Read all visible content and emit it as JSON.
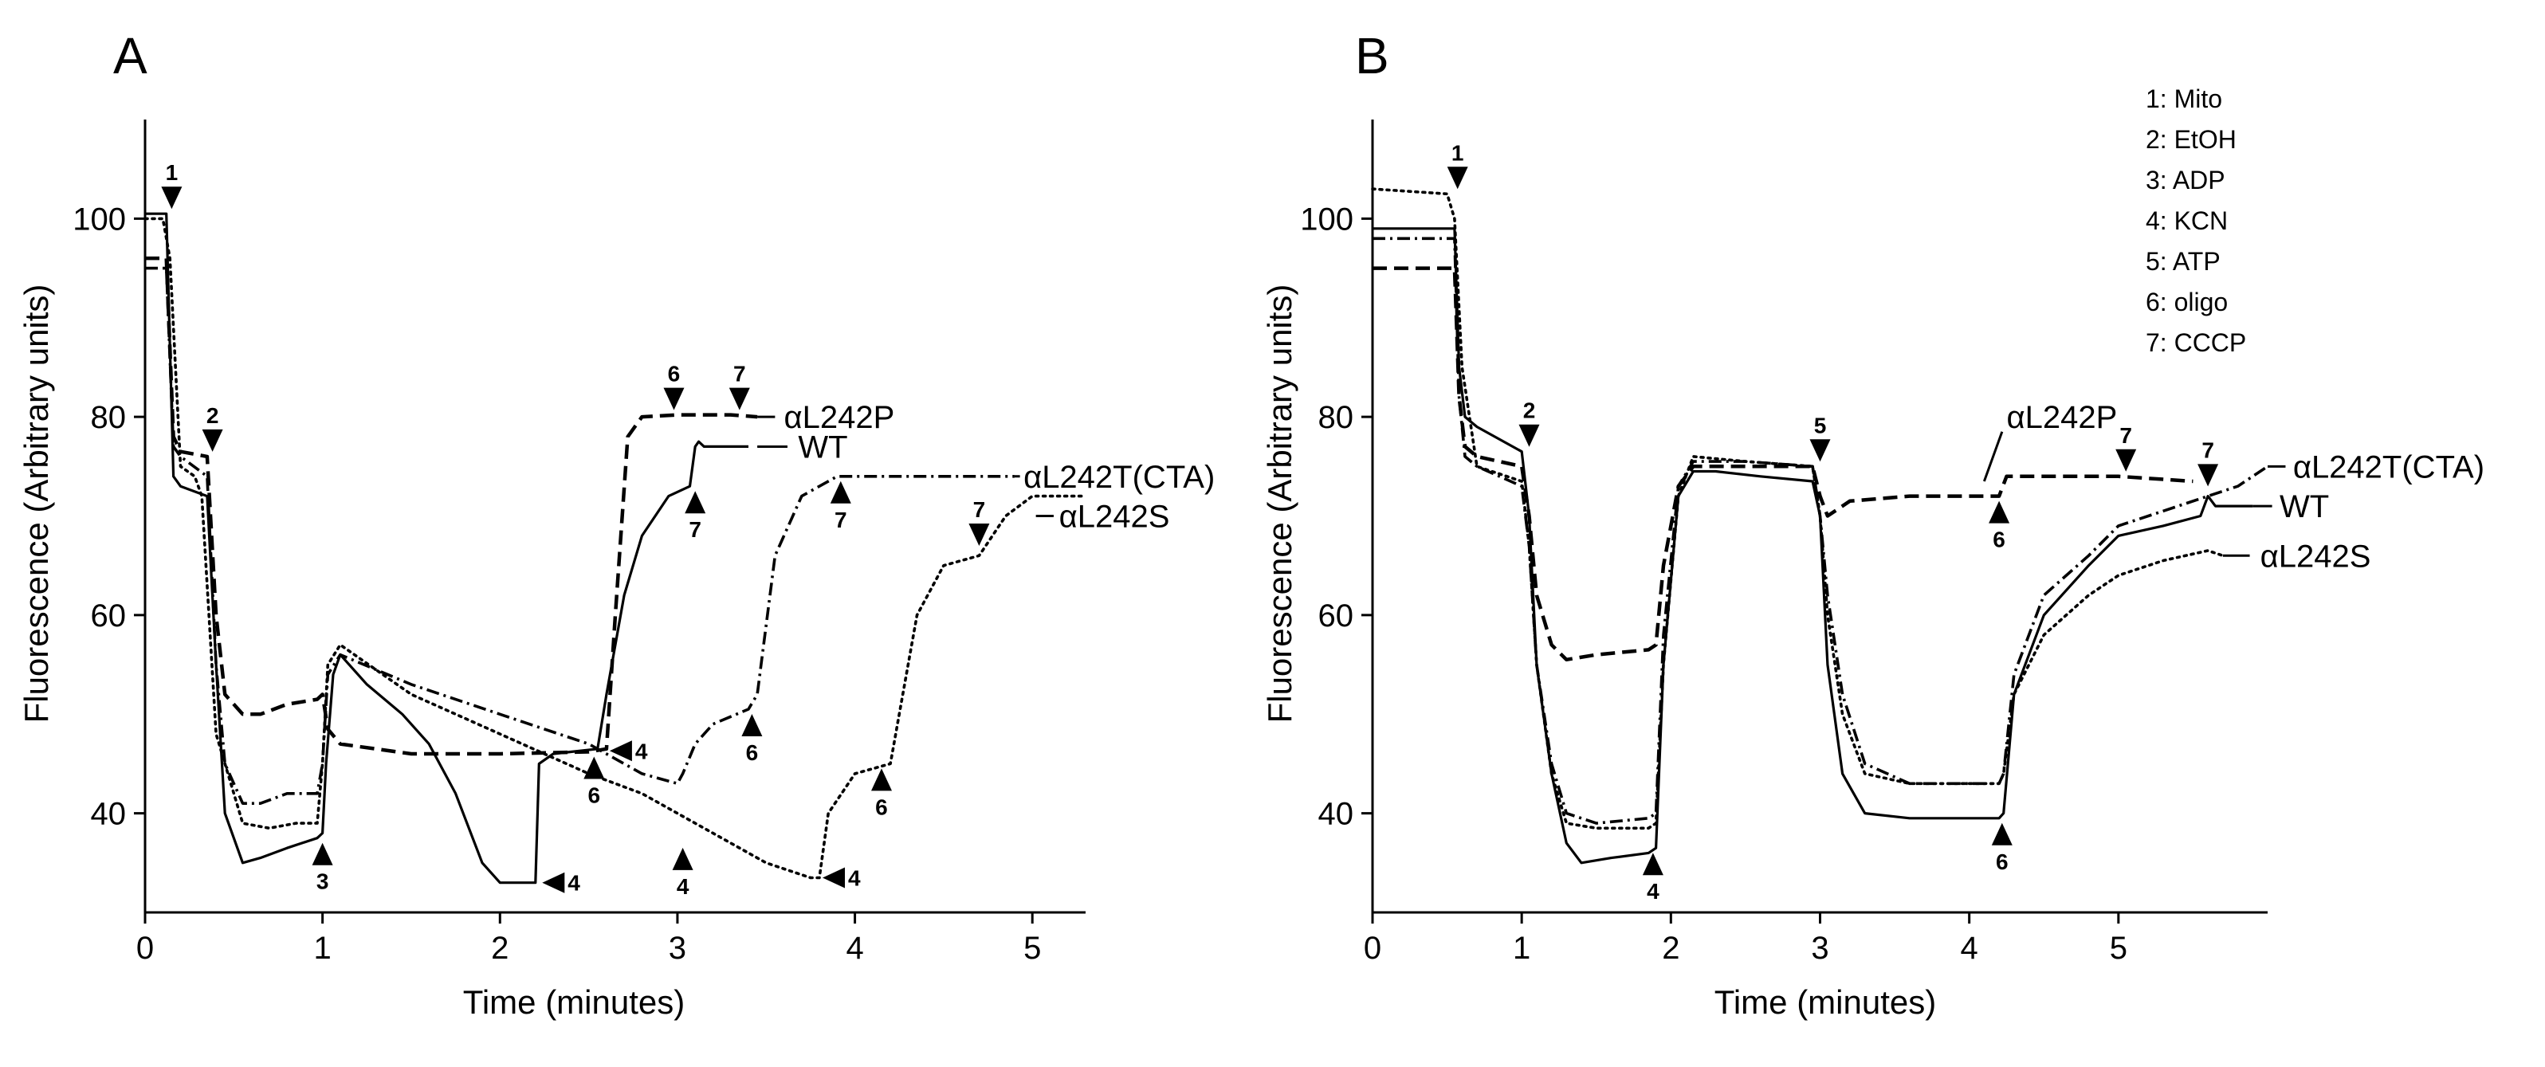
{
  "chart_data": [
    {
      "panel": "A",
      "type": "line",
      "title": "",
      "xlabel": "Time (minutes)",
      "ylabel": "Fluorescence (Arbitrary units)",
      "xlim": [
        0,
        5.3
      ],
      "ylim": [
        30,
        110
      ],
      "xticks": [
        0,
        1,
        2,
        3,
        4,
        5
      ],
      "yticks": [
        40,
        60,
        80,
        100
      ],
      "series": [
        {
          "name": "WT",
          "style": "solid",
          "x": [
            0,
            0.12,
            0.16,
            0.2,
            0.35,
            0.4,
            0.45,
            0.55,
            0.65,
            0.8,
            0.97,
            1.0,
            1.02,
            1.06,
            1.1,
            1.25,
            1.45,
            1.6,
            1.75,
            1.9,
            2.0,
            2.2,
            2.22,
            2.3,
            2.4,
            2.55,
            2.6,
            2.7,
            2.8,
            2.95,
            3.07,
            3.1,
            3.12,
            3.15,
            3.4
          ],
          "y": [
            100.5,
            100.5,
            74,
            73,
            72,
            55,
            40,
            35,
            35.5,
            36.5,
            37.5,
            38,
            45,
            54,
            56,
            53,
            50,
            47,
            42,
            35,
            33,
            33,
            45,
            46,
            46.2,
            46.5,
            52,
            62,
            68,
            72,
            73,
            77,
            77.5,
            77,
            77
          ]
        },
        {
          "name": "αL242P",
          "style": "dashed",
          "x": [
            0,
            0.12,
            0.16,
            0.2,
            0.35,
            0.4,
            0.45,
            0.55,
            0.65,
            0.8,
            0.97,
            1.0,
            1.03,
            1.1,
            1.5,
            2.0,
            2.5,
            2.6,
            2.65,
            2.72,
            2.8,
            3.0,
            3.3,
            3.45
          ],
          "y": [
            96,
            96,
            78,
            76.5,
            76,
            60,
            52,
            50,
            50,
            51,
            51.5,
            52,
            48.5,
            47,
            46,
            46,
            46.2,
            46.5,
            60,
            78,
            80,
            80.2,
            80.2,
            80
          ]
        },
        {
          "name": "αL242T(CTA)",
          "style": "dashdot",
          "x": [
            0,
            0.12,
            0.16,
            0.2,
            0.35,
            0.4,
            0.45,
            0.55,
            0.65,
            0.8,
            0.97,
            1.0,
            1.03,
            1.1,
            1.5,
            2.0,
            2.5,
            2.8,
            3.0,
            3.03,
            3.1,
            3.2,
            3.4,
            3.45,
            3.55,
            3.7,
            3.9,
            4.3,
            4.6,
            4.9
          ],
          "y": [
            95,
            95,
            77,
            76,
            74,
            55,
            45,
            41,
            41,
            42,
            42,
            45,
            54,
            56,
            53,
            50,
            47,
            44,
            43,
            44,
            47,
            49,
            50.5,
            52,
            66,
            72,
            74,
            74,
            74,
            74
          ]
        },
        {
          "name": "αL242S",
          "style": "dotted",
          "x": [
            0,
            0.1,
            0.14,
            0.2,
            0.28,
            0.32,
            0.4,
            0.55,
            0.7,
            0.85,
            0.97,
            1.0,
            1.03,
            1.1,
            1.5,
            2.0,
            2.5,
            2.8,
            3.1,
            3.5,
            3.75,
            3.8,
            3.85,
            4.0,
            4.2,
            4.25,
            4.35,
            4.5,
            4.7,
            4.85,
            5.0,
            5.3
          ],
          "y": [
            100,
            100,
            96,
            75,
            74,
            72,
            48,
            39,
            38.5,
            39,
            39,
            45,
            55,
            57,
            52,
            48,
            44,
            42,
            39,
            35,
            33.5,
            33.5,
            40,
            44,
            45,
            50,
            60,
            65,
            66,
            70,
            72,
            72
          ]
        }
      ],
      "annotations": [
        {
          "label": "1",
          "x": 0.15,
          "y": 100.5,
          "dir": "down"
        },
        {
          "label": "2",
          "x": 0.38,
          "y": 76,
          "dir": "down"
        },
        {
          "label": "3",
          "x": 1.0,
          "y": 37.5,
          "dir": "up"
        },
        {
          "label": "4",
          "x": 2.22,
          "y": 33,
          "dir": "left"
        },
        {
          "label": "4",
          "x": 2.6,
          "y": 46.3,
          "dir": "left"
        },
        {
          "label": "4",
          "x": 3.03,
          "y": 37,
          "dir": "up"
        },
        {
          "label": "4",
          "x": 3.8,
          "y": 33.5,
          "dir": "left"
        },
        {
          "label": "6",
          "x": 2.53,
          "y": 46.2,
          "dir": "up"
        },
        {
          "label": "6",
          "x": 2.98,
          "y": 80.2,
          "dir": "down"
        },
        {
          "label": "6",
          "x": 3.42,
          "y": 50.5,
          "dir": "up"
        },
        {
          "label": "6",
          "x": 4.15,
          "y": 45,
          "dir": "up"
        },
        {
          "label": "7",
          "x": 3.1,
          "y": 73,
          "dir": "up"
        },
        {
          "label": "7",
          "x": 3.35,
          "y": 80.2,
          "dir": "down"
        },
        {
          "label": "7",
          "x": 3.92,
          "y": 74,
          "dir": "up"
        },
        {
          "label": "7",
          "x": 4.7,
          "y": 66.5,
          "dir": "down"
        }
      ],
      "series_labels": [
        {
          "text": "αL242P",
          "x": 3.6,
          "y": 80,
          "leader": [
            3.45,
            3.55,
            80,
            80
          ]
        },
        {
          "text": "WT",
          "x": 3.68,
          "y": 77,
          "leader": [
            3.45,
            3.62,
            77,
            77
          ]
        },
        {
          "text": "αL242T(CTA)",
          "x": 4.95,
          "y": 74,
          "leader": [
            4.9,
            4.93,
            74,
            74
          ]
        },
        {
          "text": "αL242S",
          "x": 5.15,
          "y": 70,
          "leader": [
            5.02,
            5.12,
            70,
            70
          ]
        }
      ]
    },
    {
      "panel": "B",
      "type": "line",
      "title": "",
      "xlabel": "Time (minutes)",
      "ylabel": "Fluorescence (Arbitrary units)",
      "xlim": [
        0,
        6
      ],
      "ylim": [
        30,
        110
      ],
      "xticks": [
        0,
        1,
        2,
        3,
        4,
        5
      ],
      "yticks": [
        40,
        60,
        80,
        100
      ],
      "series": [
        {
          "name": "WT",
          "style": "solid",
          "x": [
            0,
            0.55,
            0.58,
            0.62,
            0.7,
            1.0,
            1.05,
            1.1,
            1.2,
            1.3,
            1.4,
            1.6,
            1.85,
            1.9,
            1.95,
            2.05,
            2.15,
            2.3,
            2.6,
            2.95,
            3.0,
            3.05,
            3.15,
            3.3,
            3.6,
            4.2,
            4.23,
            4.3,
            4.5,
            4.8,
            5.0,
            5.3,
            5.55,
            5.6,
            5.65,
            5.9
          ],
          "y": [
            99,
            99,
            85,
            80,
            79,
            76.5,
            70,
            55,
            44,
            37,
            35,
            35.5,
            36,
            36.5,
            55,
            72,
            74.5,
            74.5,
            74,
            73.5,
            70,
            55,
            44,
            40,
            39.5,
            39.5,
            40,
            52,
            60,
            65,
            68,
            69,
            70,
            72,
            71,
            71
          ]
        },
        {
          "name": "αL242P",
          "style": "dashed",
          "x": [
            0,
            0.55,
            0.58,
            0.62,
            0.7,
            1.0,
            1.05,
            1.1,
            1.2,
            1.3,
            1.5,
            1.85,
            1.9,
            1.95,
            2.05,
            2.15,
            2.5,
            2.95,
            3.0,
            3.05,
            3.2,
            3.6,
            4.2,
            4.25,
            4.5,
            5.0,
            5.5
          ],
          "y": [
            95,
            95,
            82,
            77,
            76,
            75,
            70,
            62,
            57,
            55.5,
            56,
            56.5,
            57,
            65,
            73,
            75,
            75,
            75,
            72,
            70,
            71.5,
            72,
            72,
            74,
            74,
            74,
            73.5
          ]
        },
        {
          "name": "αL242T(CTA)",
          "style": "dashdot",
          "x": [
            0,
            0.55,
            0.58,
            0.62,
            0.7,
            1.0,
            1.05,
            1.1,
            1.2,
            1.3,
            1.5,
            1.85,
            1.9,
            1.95,
            2.05,
            2.15,
            2.5,
            2.95,
            3.0,
            3.05,
            3.15,
            3.3,
            3.6,
            4.2,
            4.23,
            4.3,
            4.5,
            4.8,
            5.0,
            5.3,
            5.6,
            5.8,
            6.0
          ],
          "y": [
            98,
            98,
            82,
            76,
            75,
            73,
            67,
            55,
            45,
            40,
            39,
            39.5,
            40,
            58,
            73,
            75.5,
            75.5,
            75,
            70,
            62,
            52,
            45,
            43,
            43,
            44,
            54,
            62,
            66,
            69,
            70.5,
            72,
            73,
            75
          ]
        },
        {
          "name": "αL242S",
          "style": "dotted",
          "x": [
            0,
            0.5,
            0.55,
            0.6,
            0.7,
            1.0,
            1.05,
            1.1,
            1.2,
            1.3,
            1.5,
            1.85,
            1.9,
            1.95,
            2.05,
            2.15,
            2.5,
            2.95,
            3.0,
            3.05,
            3.15,
            3.3,
            3.6,
            4.2,
            4.23,
            4.3,
            4.5,
            4.8,
            5.0,
            5.3,
            5.6,
            5.7
          ],
          "y": [
            103,
            102.5,
            100,
            85,
            75,
            73.5,
            67,
            55,
            44,
            39,
            38.5,
            38.5,
            39,
            55,
            72,
            76,
            75.5,
            75,
            70,
            60,
            50,
            44,
            43,
            43,
            44,
            52,
            58,
            62,
            64,
            65.5,
            66.5,
            66
          ]
        }
      ],
      "annotations": [
        {
          "label": "1",
          "x": 0.57,
          "y": 102.5,
          "dir": "down"
        },
        {
          "label": "2",
          "x": 1.05,
          "y": 76.5,
          "dir": "down"
        },
        {
          "label": "4",
          "x": 1.88,
          "y": 36.5,
          "dir": "up"
        },
        {
          "label": "5",
          "x": 3.0,
          "y": 75,
          "dir": "down"
        },
        {
          "label": "6",
          "x": 4.22,
          "y": 39.5,
          "dir": "up"
        },
        {
          "label": "6",
          "x": 4.2,
          "y": 72,
          "dir": "up"
        },
        {
          "label": "7",
          "x": 5.05,
          "y": 74,
          "dir": "down"
        },
        {
          "label": "7",
          "x": 5.6,
          "y": 72.5,
          "dir": "down"
        }
      ],
      "series_labels": [
        {
          "text": "αL242P",
          "x": 4.25,
          "y": 80,
          "leader": [
            4.1,
            4.22,
            73.5,
            78.5
          ]
        },
        {
          "text": "WT",
          "x": 6.08,
          "y": 71,
          "leader": [
            5.9,
            6.03,
            71,
            71
          ]
        },
        {
          "text": "αL242T(CTA)",
          "x": 6.17,
          "y": 75,
          "leader": [
            6.0,
            6.12,
            75,
            75
          ]
        },
        {
          "text": "αL242S",
          "x": 5.95,
          "y": 66,
          "leader": [
            5.7,
            5.88,
            66,
            66
          ]
        }
      ],
      "legend": {
        "position": "top-right",
        "entries": [
          "1: Mito",
          "2: EtOH",
          "3: ADP",
          "4: KCN",
          "5: ATP",
          "6: oligo",
          "7: CCCP"
        ]
      }
    }
  ]
}
